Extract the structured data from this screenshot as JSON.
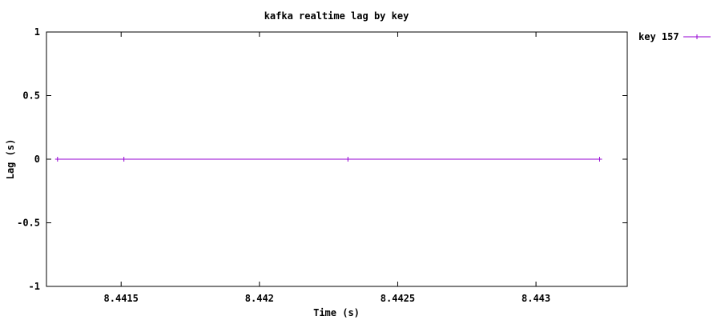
{
  "chart_data": {
    "type": "line",
    "title": "kafka realtime lag by key",
    "xlabel": "Time (s)",
    "ylabel": "Lag (s)",
    "xlim": [
      8.44123,
      8.44333
    ],
    "ylim": [
      -1,
      1
    ],
    "grid": false,
    "legend_position": "outside-right-top",
    "x_ticks": [
      8.4415,
      8.442,
      8.4425,
      8.443
    ],
    "x_tick_labels": [
      "8.4415",
      "8.442",
      "8.4425",
      "8.443"
    ],
    "y_ticks": [
      -1,
      -0.5,
      0,
      0.5,
      1
    ],
    "y_tick_labels": [
      "-1",
      "-0.5",
      "0",
      "0.5",
      "1"
    ],
    "series": [
      {
        "name": "key 157",
        "color": "#9400d3",
        "marker": "plus",
        "x": [
          8.44127,
          8.44151,
          8.44232,
          8.44323
        ],
        "y": [
          0,
          0,
          0,
          0
        ]
      }
    ]
  }
}
